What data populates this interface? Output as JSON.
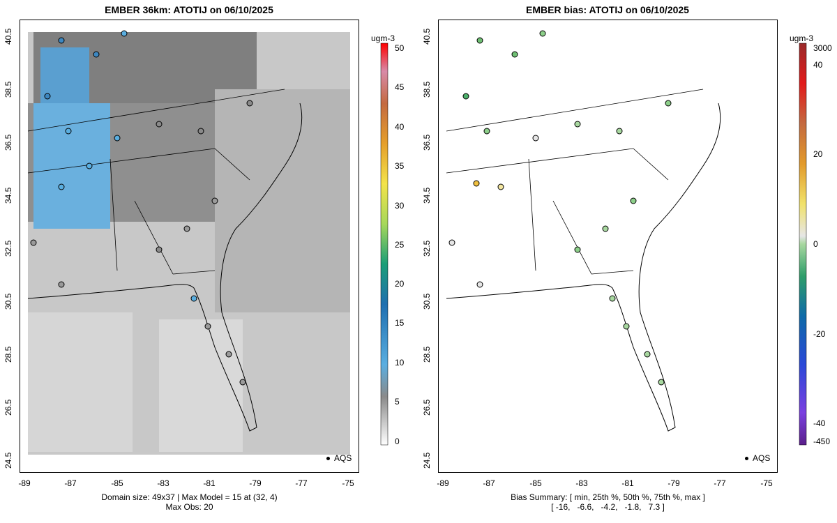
{
  "left_panel": {
    "title": "EMBER 36km: ATOTIJ on 06/10/2025",
    "footer_line1": "Domain size: 49x37 | Max Model = 15 at (32, 4)",
    "footer_line2": "Max Obs: 20",
    "legend_label": "AQS",
    "colorbar_unit": "ugm-3",
    "colorbar_ticks": [
      "0",
      "5",
      "10",
      "15",
      "20",
      "25",
      "30",
      "35",
      "40",
      "45",
      "50"
    ]
  },
  "right_panel": {
    "title": "EMBER bias: ATOTIJ on 06/10/2025",
    "footer_line1": "Bias Summary: [ min, 25th %, 50th %, 75th %, max ]",
    "footer_line2": "[ -16,   -6.6,   -4.2,   -1.8,   7.3 ]",
    "legend_label": "AQS",
    "colorbar_unit": "ugm-3",
    "colorbar_ticks": [
      "3000",
      "40",
      "20",
      "0",
      "-20",
      "-40",
      "-450"
    ]
  },
  "axes": {
    "x_ticks": [
      "-89",
      "-87",
      "-85",
      "-83",
      "-81",
      "-79",
      "-77",
      "-75"
    ],
    "y_ticks": [
      "24.5",
      "26.5",
      "28.5",
      "30.5",
      "32.5",
      "34.5",
      "36.5",
      "38.5",
      "40.5"
    ]
  },
  "colors": {
    "model_high": "#5aaee0",
    "model_mid": "#8a8a8a",
    "model_low": "#d9d9d9",
    "bias_neg": "#6fbf73",
    "bias_zero": "#e6e6e6",
    "bias_pos": "#f0c040"
  }
}
